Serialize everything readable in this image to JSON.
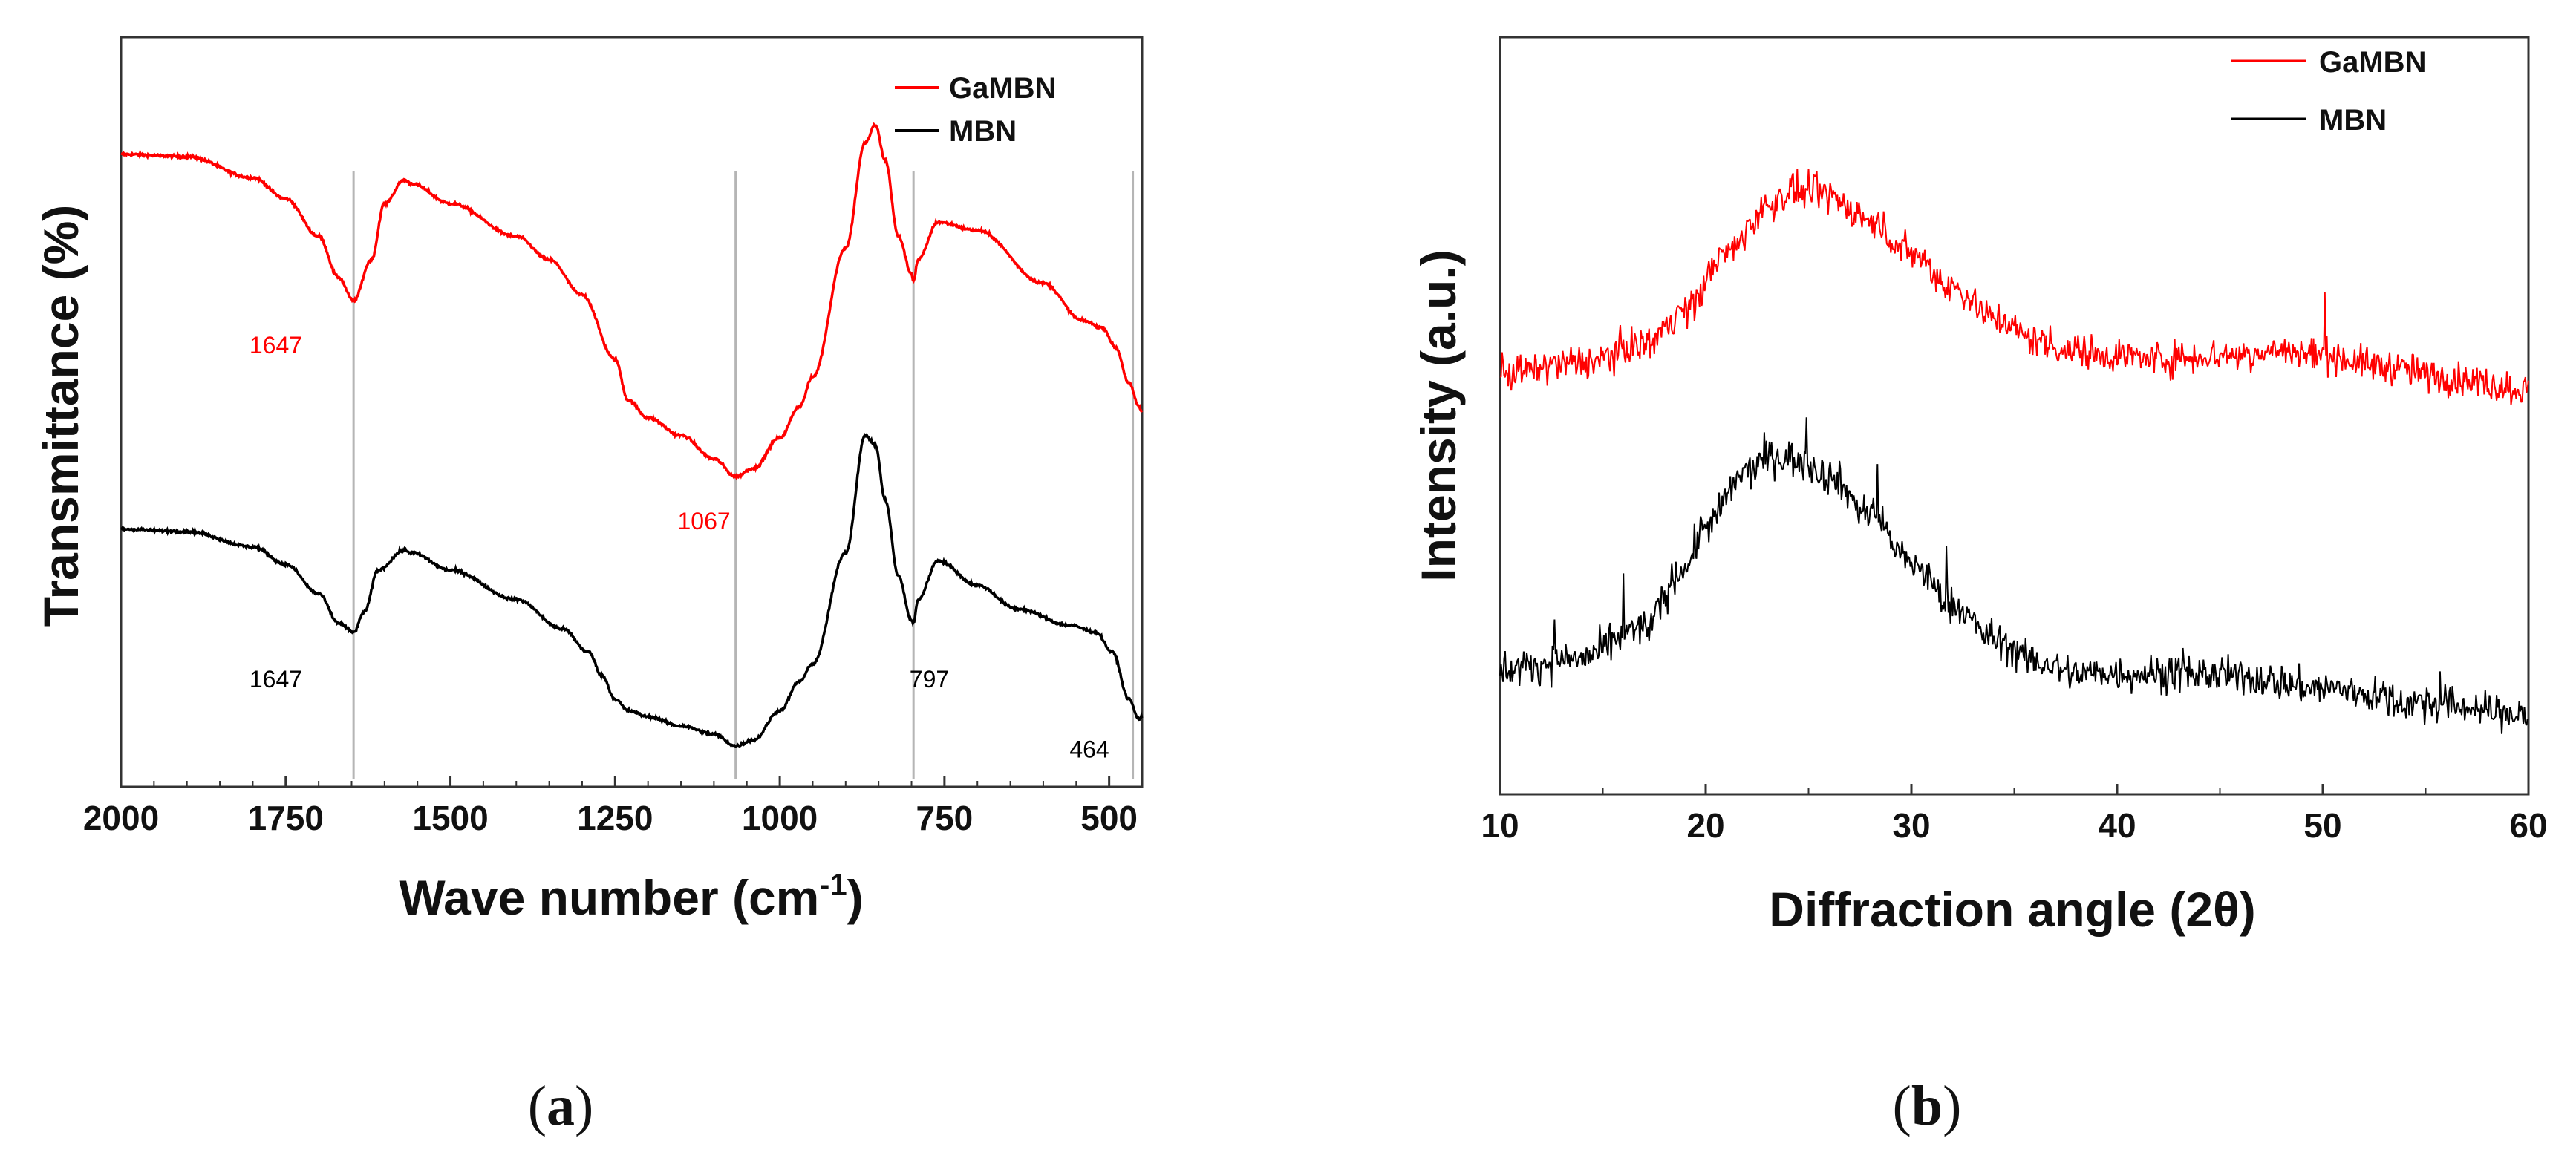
{
  "chart_data": [
    {
      "type": "line",
      "panel_label": "a",
      "panel_letter": "a",
      "xlabel": "Wave number (cm",
      "xlabel_sup": "-1",
      "xlabel_close": ")",
      "ylabel": "Transmittance (%)",
      "xlim": [
        2000,
        450
      ],
      "x_reversed": true,
      "ylim": [
        -3.2,
        3.2
      ],
      "y_ticks_shown": false,
      "x_ticks": [
        2000,
        1750,
        1500,
        1250,
        1000,
        750,
        500
      ],
      "x_tick_labels": [
        "2000",
        "1750",
        "1500",
        "1250",
        "1000",
        "750",
        "500"
      ],
      "legend_position": "top-right",
      "reference_lines": [
        1647,
        1067,
        797,
        464
      ],
      "series": [
        {
          "name": "GaMBN",
          "color": "#ff0000",
          "x": [
            2000,
            1900,
            1800,
            1750,
            1700,
            1670,
            1647,
            1620,
            1600,
            1570,
            1560,
            1500,
            1400,
            1350,
            1300,
            1250,
            1230,
            1200,
            1150,
            1100,
            1067,
            1040,
            1000,
            970,
            950,
            900,
            870,
            855,
            840,
            820,
            800,
            797,
            790,
            760,
            700,
            600,
            540,
            510,
            490,
            470,
            455,
            450
          ],
          "values": [
            2.2,
            2.18,
            2.0,
            1.82,
            1.5,
            1.15,
            0.95,
            1.3,
            1.78,
            1.98,
            1.95,
            1.78,
            1.5,
            1.3,
            1.0,
            0.45,
            0.1,
            -0.05,
            -0.2,
            -0.4,
            -0.55,
            -0.48,
            -0.22,
            0.05,
            0.3,
            1.4,
            2.3,
            2.45,
            2.15,
            1.5,
            1.18,
            1.12,
            1.3,
            1.62,
            1.55,
            1.1,
            0.78,
            0.72,
            0.55,
            0.25,
            0.05,
            0.0
          ]
        },
        {
          "name": "MBN",
          "color": "#000000",
          "x": [
            2000,
            1900,
            1800,
            1750,
            1700,
            1670,
            1647,
            1630,
            1610,
            1570,
            1560,
            1500,
            1400,
            1330,
            1290,
            1270,
            1250,
            1230,
            1200,
            1150,
            1100,
            1067,
            1040,
            1000,
            970,
            950,
            900,
            870,
            855,
            840,
            820,
            800,
            797,
            790,
            760,
            700,
            640,
            560,
            520,
            495,
            470,
            455,
            450
          ],
          "values": [
            -1.0,
            -1.02,
            -1.15,
            -1.3,
            -1.55,
            -1.8,
            -1.88,
            -1.7,
            -1.35,
            -1.18,
            -1.2,
            -1.35,
            -1.6,
            -1.85,
            -2.05,
            -2.25,
            -2.45,
            -2.55,
            -2.6,
            -2.68,
            -2.75,
            -2.85,
            -2.8,
            -2.55,
            -2.3,
            -2.15,
            -1.2,
            -0.2,
            -0.28,
            -0.75,
            -1.4,
            -1.78,
            -1.8,
            -1.6,
            -1.27,
            -1.48,
            -1.68,
            -1.82,
            -1.88,
            -2.05,
            -2.45,
            -2.62,
            -2.6
          ]
        }
      ],
      "annotations": [
        {
          "text": "1647",
          "x": 1765,
          "y": 0.5,
          "color": "#ff0000"
        },
        {
          "text": "1067",
          "x": 1115,
          "y": -1.0,
          "color": "#ff0000"
        },
        {
          "text": "1647",
          "x": 1765,
          "y": -2.35,
          "color": "#000000"
        },
        {
          "text": "797",
          "x": 773,
          "y": -2.35,
          "color": "#000000"
        },
        {
          "text": "464",
          "x": 530,
          "y": -2.95,
          "color": "#000000"
        }
      ]
    },
    {
      "type": "line",
      "panel_label": "b",
      "panel_letter": "b",
      "xlabel": "Diffraction angle (2θ)",
      "ylabel": "Intensity (a.u.)",
      "xlim": [
        10,
        60
      ],
      "ylim": [
        0,
        10
      ],
      "y_ticks_shown": false,
      "x_ticks": [
        10,
        20,
        30,
        40,
        50,
        60
      ],
      "x_tick_labels": [
        "10",
        "20",
        "30",
        "40",
        "50",
        "60"
      ],
      "legend_position": "top-right",
      "series": [
        {
          "name": "GaMBN",
          "color": "#ff0000",
          "noise": 0.32,
          "x": [
            10,
            14,
            17,
            19,
            21,
            23,
            24,
            25,
            26,
            27,
            28,
            30,
            32,
            34,
            36,
            38,
            40,
            42,
            45,
            48,
            50,
            53,
            56,
            60
          ],
          "values": [
            5.55,
            5.7,
            5.95,
            6.4,
            7.15,
            7.75,
            7.95,
            7.95,
            7.9,
            7.75,
            7.55,
            7.15,
            6.7,
            6.3,
            6.0,
            5.85,
            5.8,
            5.75,
            5.8,
            5.85,
            5.8,
            5.65,
            5.5,
            5.35
          ]
        },
        {
          "name": "MBN",
          "color": "#000000",
          "noise": 0.34,
          "x": [
            10,
            14,
            17,
            19,
            20,
            22,
            23,
            24,
            25,
            26,
            28,
            30,
            32,
            34,
            36,
            38,
            40,
            43,
            46,
            50,
            55,
            60
          ],
          "values": [
            1.65,
            1.8,
            2.2,
            3.0,
            3.55,
            4.25,
            4.45,
            4.45,
            4.35,
            4.2,
            3.7,
            3.05,
            2.5,
            2.05,
            1.75,
            1.6,
            1.6,
            1.6,
            1.55,
            1.4,
            1.2,
            1.05
          ]
        }
      ]
    }
  ]
}
